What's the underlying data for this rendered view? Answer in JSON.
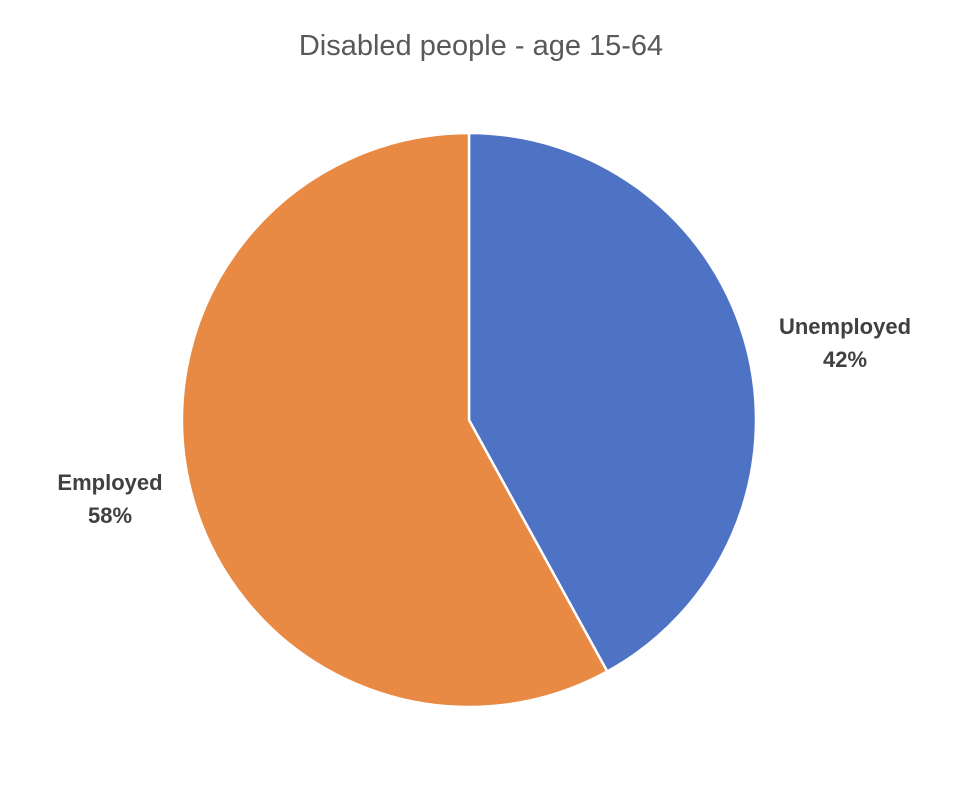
{
  "chart_data": {
    "type": "pie",
    "title": "Disabled people - age 15-64",
    "slices": [
      {
        "label": "Unemployed",
        "value": 42,
        "display": "42%",
        "color": "#4e72c4"
      },
      {
        "label": "Employed",
        "value": 58,
        "display": "58%",
        "color": "#e88a43"
      }
    ],
    "start_angle": "12 o'clock",
    "direction": "clockwise",
    "slice_border_color": "#ffffff",
    "legend": "none"
  }
}
